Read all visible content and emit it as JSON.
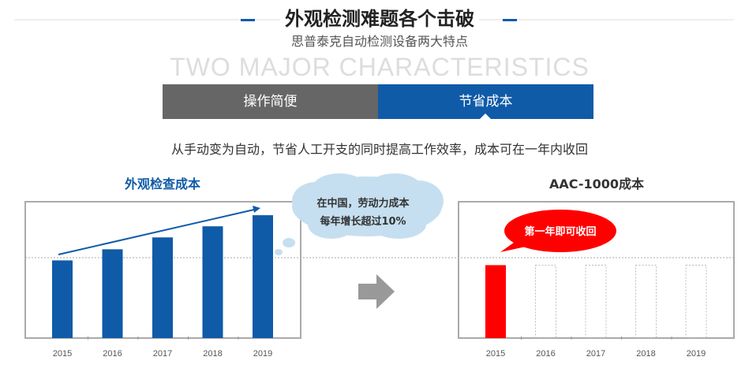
{
  "header": {
    "title": "外观检测难题各个击破",
    "watermark": "TWO MAJOR CHARACTERISTICS",
    "subtitle": "思普泰克自动检测设备两大特点"
  },
  "tabs": [
    {
      "label": "操作简便",
      "active": false
    },
    {
      "label": "节省成本",
      "active": true
    }
  ],
  "description": "从手动变为自动，节省人工开支的同时提高工作效率，成本可在一年内收回",
  "colors": {
    "accent": "#0f5ba8",
    "tab_inactive": "#666666",
    "highlight": "#ff0000",
    "cloud": "#c5dff0",
    "arrow": "#999999"
  },
  "chart_data": [
    {
      "type": "bar",
      "title": "外观检查成本",
      "categories": [
        "2015",
        "2016",
        "2017",
        "2018",
        "2019"
      ],
      "values": [
        98,
        112,
        127,
        141,
        155
      ],
      "ylim": [
        0,
        172
      ],
      "annotation": "在中国，劳动力成本每年增长超过10%",
      "annotation_lines": [
        "在中国，劳动力成本",
        "每年增长超过10%"
      ],
      "trend_arrow": true
    },
    {
      "type": "bar",
      "title": "AAC-1000成本",
      "categories": [
        "2015",
        "2016",
        "2017",
        "2018",
        "2019"
      ],
      "values": [
        92,
        0,
        0,
        0,
        0
      ],
      "ghost_values": [
        92,
        92,
        92,
        92,
        92
      ],
      "ylim": [
        0,
        172
      ],
      "annotation": "第一年即可收回"
    }
  ],
  "transition_icon": "right-arrow-icon"
}
